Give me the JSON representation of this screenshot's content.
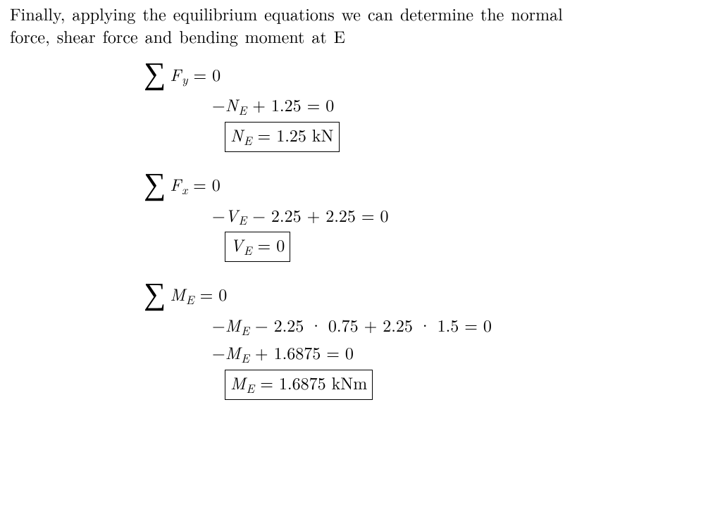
{
  "intro_line1": "Finally, applying the equilibrium equations we can determine the normal",
  "intro_line2": "force, shear force and bending moment at E",
  "sum_label_Fy": "F",
  "sum_sub_Fy": "y",
  "eq_zero": " = 0",
  "fy_line2_prefix": "−",
  "fy_N": "N",
  "fy_N_sub": "E",
  "fy_line2_rest": " + 1.25 = 0",
  "fy_box_N": "N",
  "fy_box_sub": "E",
  "fy_box_rest": " = 1.25 kN",
  "sum_label_Fx": "F",
  "sum_sub_Fx": "x",
  "fx_line2_prefix": "−",
  "fx_V": "V",
  "fx_V_sub": "E",
  "fx_line2_rest": " − 2.25 + 2.25 = 0",
  "fx_box_V": "V",
  "fx_box_sub": "E",
  "fx_box_rest": " = 0",
  "sum_label_M": "M",
  "sum_sub_M": "E",
  "m_line2_prefix": "−",
  "m_M": "M",
  "m_M_sub": "E",
  "m_line2_rest": " − 2.25 · 0.75 + 2.25 · 1.5 = 0",
  "m_line3_prefix": "−",
  "m_M3": "M",
  "m_M3_sub": "E",
  "m_line3_rest": " + 1.6875 = 0",
  "m_box_M": "M",
  "m_box_sub": "E",
  "m_box_rest": " = 1.6875 kNm"
}
